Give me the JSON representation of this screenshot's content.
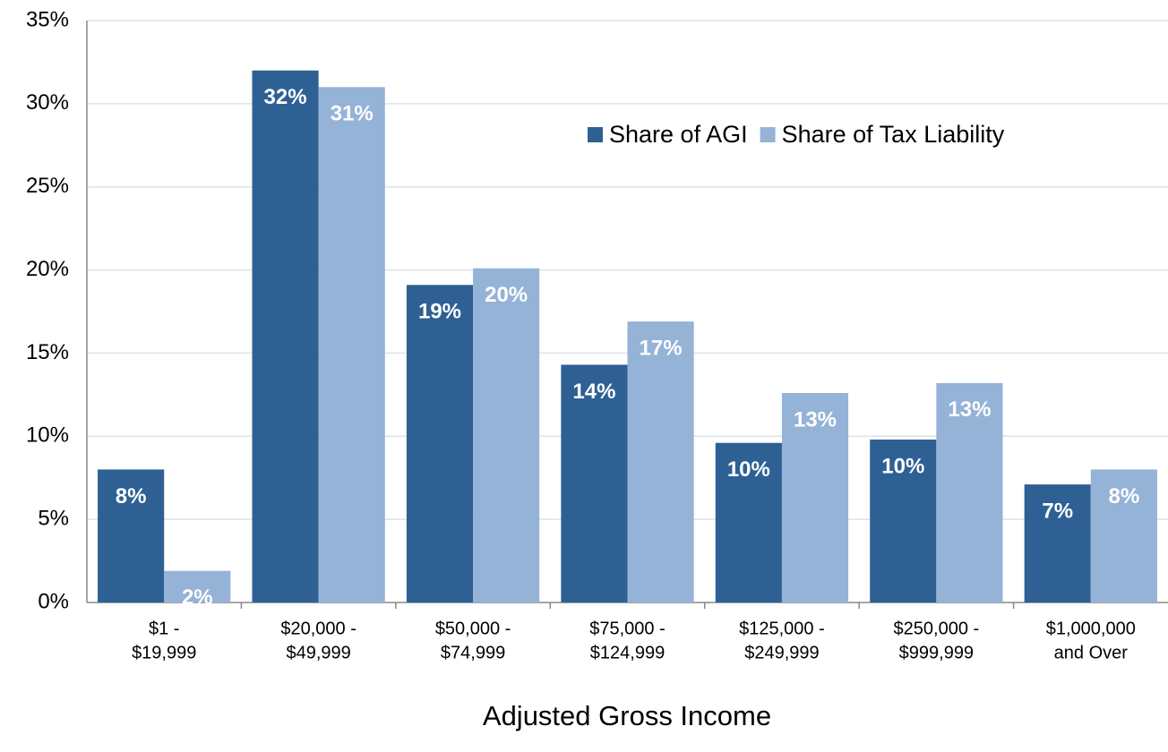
{
  "chart_data": {
    "type": "bar",
    "x_label": "Adjusted Gross Income",
    "categories": [
      [
        "$1 -",
        "$19,999"
      ],
      [
        "$20,000 -",
        "$49,999"
      ],
      [
        "$50,000 -",
        "$74,999"
      ],
      [
        "$75,000 -",
        "$124,999"
      ],
      [
        "$125,000 -",
        "$249,999"
      ],
      [
        "$250,000 -",
        "$999,999"
      ],
      [
        "$1,000,000",
        "and Over"
      ]
    ],
    "series": [
      {
        "name": "Share of AGI",
        "color": "#2e6094",
        "values": [
          8.0,
          32.0,
          19.1,
          14.3,
          9.6,
          9.8,
          7.1
        ],
        "value_labels": [
          "8%",
          "32%",
          "19%",
          "14%",
          "10%",
          "10%",
          "7%"
        ]
      },
      {
        "name": "Share of Tax Liability",
        "color": "#95b3d7",
        "values": [
          1.9,
          31.0,
          20.1,
          16.9,
          12.6,
          13.2,
          8.0
        ],
        "value_labels": [
          "2%",
          "31%",
          "20%",
          "17%",
          "13%",
          "13%",
          "8%"
        ]
      }
    ],
    "ylim": [
      0,
      35
    ],
    "yticks": [
      {
        "value": 0,
        "label": "0%"
      },
      {
        "value": 5,
        "label": "5%"
      },
      {
        "value": 10,
        "label": "10%"
      },
      {
        "value": 15,
        "label": "15%"
      },
      {
        "value": 20,
        "label": "20%"
      },
      {
        "value": 25,
        "label": "25%"
      },
      {
        "value": 30,
        "label": "30%"
      },
      {
        "value": 35,
        "label": "35%"
      }
    ],
    "grid": true,
    "legend": "top-right"
  }
}
